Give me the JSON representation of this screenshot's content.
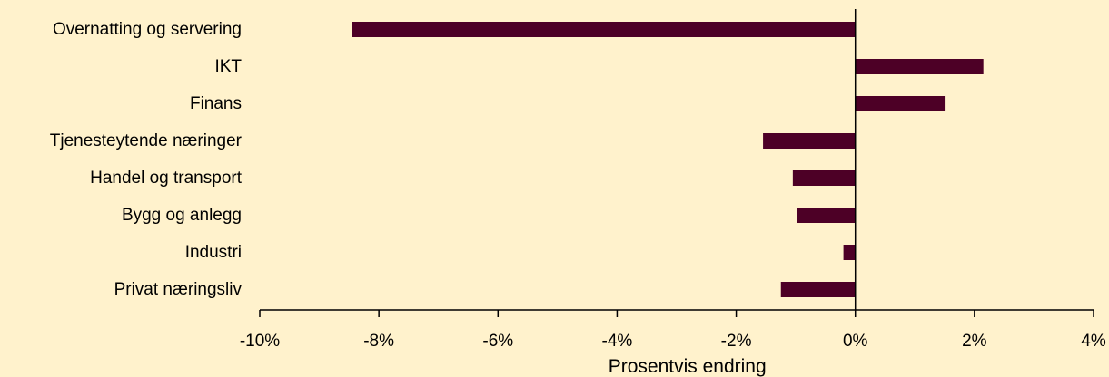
{
  "chart_data": {
    "type": "bar",
    "orientation": "horizontal",
    "categories": [
      "Overnatting og servering",
      "IKT",
      "Finans",
      "Tjenesteytende næringer",
      "Handel og transport",
      "Bygg og anlegg",
      "Industri",
      "Privat næringsliv"
    ],
    "values": [
      -8.45,
      2.15,
      1.5,
      -1.55,
      -1.05,
      -0.98,
      -0.2,
      -1.25
    ],
    "xlim": [
      -10,
      4
    ],
    "xticks": [
      -10,
      -8,
      -6,
      -4,
      -2,
      0,
      2,
      4
    ],
    "tick_labels": [
      "-10%",
      "-8%",
      "-6%",
      "-4%",
      "-2%",
      "0%",
      "2%",
      "4%"
    ],
    "xlabel": "Prosentvis endring",
    "ylabel": "",
    "title": "",
    "grid": false,
    "legend": "none"
  },
  "colors": {
    "background": "#FFF2CC",
    "bar": "#4D0026",
    "axis": "#000000"
  }
}
